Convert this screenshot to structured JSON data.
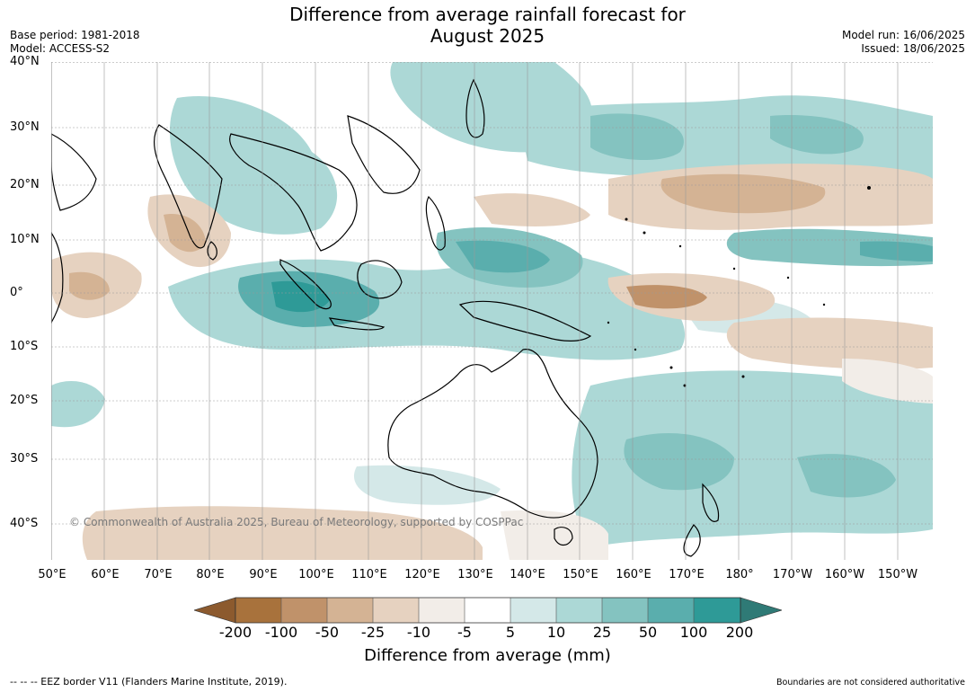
{
  "title": {
    "line1": "Difference from average rainfall forecast for",
    "line2": "August 2025"
  },
  "meta_left": {
    "base_period": "Base period: 1981-2018",
    "model": "Model: ACCESS-S2"
  },
  "meta_right": {
    "model_run": "Model run: 16/06/2025",
    "issued": "Issued: 18/06/2025"
  },
  "map": {
    "region": "Indian Ocean, Maritime Continent, Australia and Western Pacific",
    "projection": "equirectangular",
    "lon_range": [
      50,
      217
    ],
    "lat_range": [
      -46,
      40
    ],
    "lat_labels": [
      "40°N",
      "30°N",
      "20°N",
      "10°N",
      "0°",
      "10°S",
      "20°S",
      "30°S",
      "40°S"
    ],
    "lon_labels": [
      "50°E",
      "60°E",
      "70°E",
      "80°E",
      "90°E",
      "100°E",
      "110°E",
      "120°E",
      "130°E",
      "140°E",
      "150°E",
      "160°E",
      "170°E",
      "180°",
      "170°W",
      "160°W",
      "150°W"
    ],
    "copyright": "© Commonwealth of Australia 2025, Bureau of Meteorology, supported by COSPPac"
  },
  "colorbar": {
    "label": "Difference from average (mm)",
    "ticks": [
      "-200",
      "-100",
      "-50",
      "-25",
      "-10",
      "-5",
      "5",
      "10",
      "25",
      "50",
      "100",
      "200"
    ],
    "colors": {
      "below_-200": "#8c5a2e",
      "-200_-100": "#a8723c",
      "-100_-50": "#c0926a",
      "-50_-25": "#d4b394",
      "-25_-10": "#e6d2c0",
      "-10_-5": "#f2ede8",
      "-5_5": "#ffffff",
      "5_10": "#d4e8e8",
      "10_25": "#acd8d6",
      "25_50": "#84c3c0",
      "50_100": "#5aaead",
      "100_200": "#2e9a97",
      "above_200": "#2f7a76"
    }
  },
  "footer": {
    "eez_note": "--  --  -- EEZ border V11 (Flanders Marine Institute, 2019).",
    "boundary_note": "Boundaries are not considered authoritative"
  }
}
